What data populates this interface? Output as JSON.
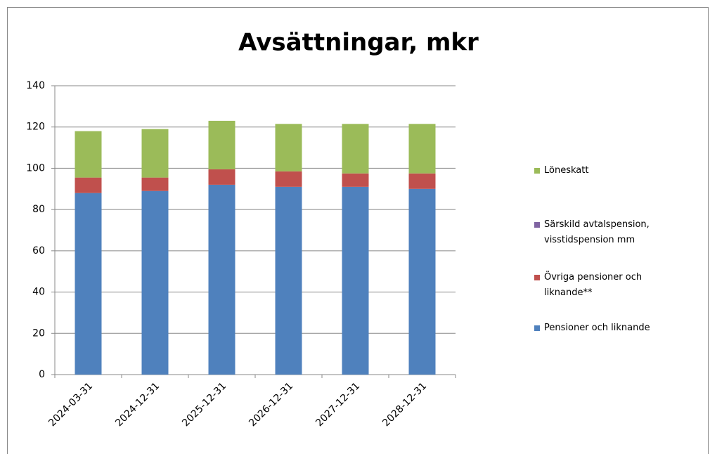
{
  "chart_data": {
    "type": "stacked_bar",
    "title": "Avsättningar, mkr",
    "categories": [
      "2024-03-31",
      "2024-12-31",
      "2025-12-31",
      "2026-12-31",
      "2027-12-31",
      "2028-12-31"
    ],
    "series": [
      {
        "name": "Pensioner och liknande",
        "color": "#4f81bd",
        "values": [
          88,
          89,
          92,
          91,
          91,
          90
        ]
      },
      {
        "name": "Övriga pensioner och liknande**",
        "color": "#c0504d",
        "values": [
          7.5,
          6.5,
          7.5,
          7.5,
          6.5,
          7.5
        ]
      },
      {
        "name": "Särskild avtalspension, visstidspension mm",
        "color": "#8064a2",
        "values": [
          0,
          0,
          0,
          0,
          0,
          0
        ]
      },
      {
        "name": "Löneskatt",
        "color": "#9bbb59",
        "values": [
          22.5,
          23.5,
          23.5,
          23,
          24,
          24
        ]
      }
    ],
    "ylim": [
      0,
      140
    ],
    "yticks": [
      0,
      20,
      40,
      60,
      80,
      100,
      120,
      140
    ],
    "grid": true,
    "legend": "right"
  }
}
